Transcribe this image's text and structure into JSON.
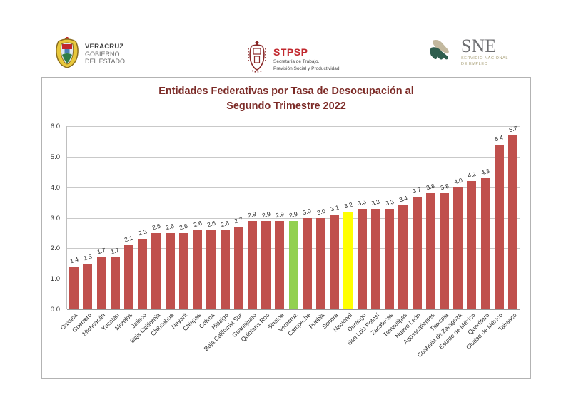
{
  "header": {
    "veracruz_logo": {
      "title": "VERACRUZ",
      "line2": "GOBIERNO",
      "line3": "DEL ESTADO"
    },
    "stpsp_logo": {
      "abbr": "STPSP",
      "line1": "Secretaría de  Trabajo,",
      "line2": "Previsión Social y Productividad"
    },
    "sne_logo": {
      "abbr": "SNE",
      "line1": "SERVICIO NACIONAL",
      "line2": "DE EMPLEO"
    }
  },
  "chart_data": {
    "type": "bar",
    "title": "Entidades Federativas por Tasa de Desocupación al Segundo Trimestre 2022",
    "title_line1": "Entidades Federativas por Tasa de Desocupación al",
    "title_line2": "Segundo Trimestre 2022",
    "categories": [
      "Oaxaca",
      "Guerrero",
      "Michoacán",
      "Yucatán",
      "Morelos",
      "Jalisco",
      "Baja California",
      "Chihuahua",
      "Nayarit",
      "Chiapas",
      "Colima",
      "Hidalgo",
      "Baja California Sur",
      "Guanajuato",
      "Quintana Roo",
      "Sinaloa",
      "Veracruz",
      "Campeche",
      "Puebla",
      "Sonora",
      "Nacional",
      "Durango",
      "San Luis Potosí",
      "Zacatecas",
      "Tamaulipas",
      "Nuevo León",
      "Aguascalientes",
      "Tlaxcala",
      "Coahuila de Zaragoza",
      "Estado de México",
      "Querétaro",
      "Ciudad de México",
      "Tabasco"
    ],
    "values": [
      1.4,
      1.5,
      1.7,
      1.7,
      2.1,
      2.3,
      2.5,
      2.5,
      2.5,
      2.6,
      2.6,
      2.6,
      2.7,
      2.9,
      2.9,
      2.9,
      2.9,
      3.0,
      3.0,
      3.1,
      3.2,
      3.3,
      3.3,
      3.3,
      3.4,
      3.7,
      3.8,
      3.8,
      4.0,
      4.2,
      4.3,
      5.4,
      5.7
    ],
    "value_labels": [
      "1.4",
      "1.5",
      "1.7",
      "1.7",
      "2.1",
      "2.3",
      "2.5",
      "2.5",
      "2.5",
      "2.6",
      "2.6",
      "2.6",
      "2.7",
      "2.9",
      "2.9",
      "2.9",
      "2.9",
      "3.0",
      "3.0",
      "3.1",
      "3.2",
      "3.3",
      "3.3",
      "3.3",
      "3.4",
      "3.7",
      "3.8",
      "3.8",
      "4.0",
      "4.2",
      "4.3",
      "5.4",
      "5.7"
    ],
    "ylim": [
      0,
      6
    ],
    "yticks": [
      "6.0",
      "5.0",
      "4.0",
      "3.0",
      "2.0",
      "1.0",
      "0.0"
    ],
    "grid": "horizontal gridlines on",
    "legend_position": "none",
    "colors": {
      "bar_default": "#C0504D",
      "bar_veracruz": "#92D050",
      "bar_nacional": "#FFFF00",
      "title": "#7C2B27"
    },
    "highlight_indexes": {
      "16": "#92D050",
      "20": "#FFFF00"
    }
  }
}
